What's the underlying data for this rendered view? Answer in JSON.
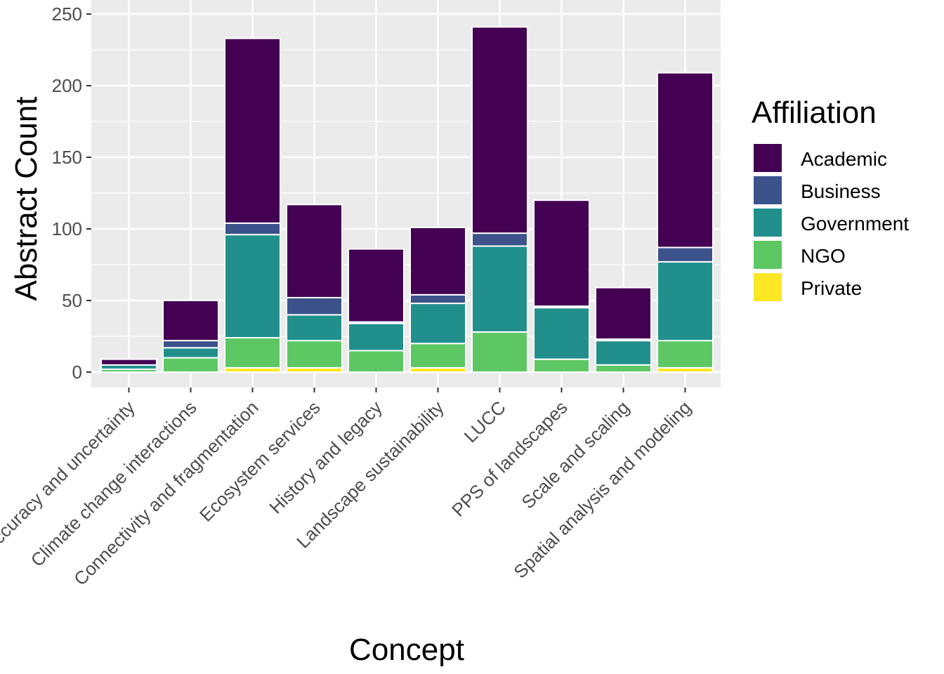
{
  "chart_data": {
    "type": "bar",
    "stacked": true,
    "xlabel": "Concept",
    "ylabel": "Abstract Count",
    "ylim": [
      0,
      250
    ],
    "yticks": [
      0,
      50,
      100,
      150,
      200,
      250
    ],
    "grid": true,
    "legend": {
      "title": "Affiliation",
      "placement": "right"
    },
    "categories": [
      "Accuracy and uncertainty",
      "Climate change interactions",
      "Connectivity and fragmentation",
      "Ecosystem services",
      "History and legacy",
      "Landscape sustainability",
      "LUCC",
      "PPS of landscapes",
      "Scale and scaling",
      "Spatial analysis and modeling"
    ],
    "series": [
      {
        "name": "Private",
        "color": "#FDE725",
        "values": [
          0,
          0,
          3,
          3,
          0,
          3,
          0,
          0,
          0,
          3
        ]
      },
      {
        "name": "NGO",
        "color": "#5DC863",
        "values": [
          2,
          10,
          21,
          19,
          15,
          17,
          28,
          9,
          5,
          19
        ]
      },
      {
        "name": "Government",
        "color": "#21908C",
        "values": [
          3,
          7,
          72,
          18,
          19,
          28,
          60,
          36,
          17,
          55
        ]
      },
      {
        "name": "Business",
        "color": "#3B528B",
        "values": [
          0,
          5,
          8,
          12,
          1,
          6,
          9,
          1,
          1,
          10
        ]
      },
      {
        "name": "Academic",
        "color": "#440154",
        "values": [
          4,
          28,
          129,
          65,
          51,
          47,
          144,
          74,
          36,
          122
        ]
      }
    ],
    "legend_order": [
      "Academic",
      "Business",
      "Government",
      "NGO",
      "Private"
    ]
  }
}
